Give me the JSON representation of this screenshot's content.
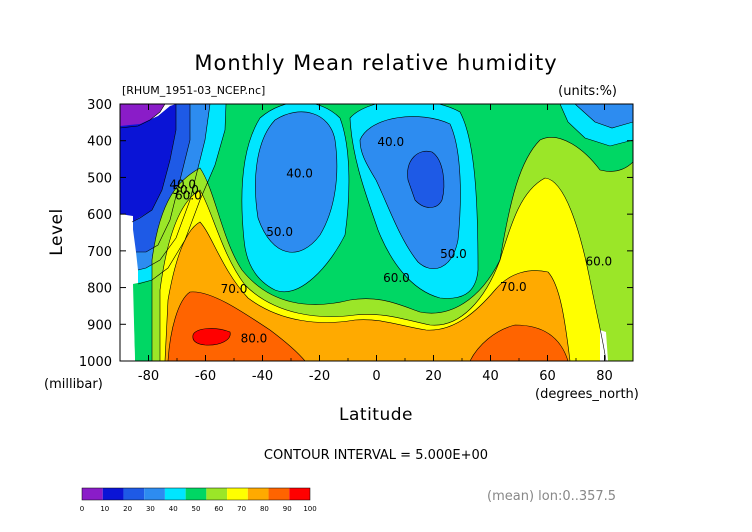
{
  "chart_data": {
    "type": "filled-contour",
    "title": "Monthly Mean relative humidity",
    "file_label": "[RHUM_1951-03_NCEP.nc]",
    "units_label": "(units:%)",
    "xlabel": "Latitude",
    "x_unit_label": "(degrees_north)",
    "ylabel": "Level",
    "y_unit_label": "(millibar)",
    "xlim": [
      -90,
      90
    ],
    "ylim": [
      1000,
      300
    ],
    "x_ticks": [
      -80,
      -60,
      -40,
      -20,
      0,
      20,
      40,
      60,
      80
    ],
    "x_tick_labels": [
      "-80",
      "-60",
      "-40",
      "-20",
      "0",
      "20",
      "40",
      "60",
      "80"
    ],
    "y_ticks": [
      300,
      400,
      500,
      600,
      700,
      800,
      900,
      1000
    ],
    "y_tick_labels": [
      "300",
      "400",
      "500",
      "600",
      "700",
      "800",
      "900",
      "1000"
    ],
    "contour_interval_text": "CONTOUR INTERVAL = 5.000E+00",
    "averaging_text": "(mean) lon:0..357.5",
    "contour_labels": [
      {
        "text": "40.0",
        "lat": -68,
        "lev": 530
      },
      {
        "text": "50.0",
        "lat": -67,
        "lev": 545
      },
      {
        "text": "60.0",
        "lat": -66,
        "lev": 560
      },
      {
        "text": "40.0",
        "lat": -27,
        "lev": 500
      },
      {
        "text": "50.0",
        "lat": -34,
        "lev": 660
      },
      {
        "text": "40.0",
        "lat": 5,
        "lev": 415
      },
      {
        "text": "60.0",
        "lat": 7,
        "lev": 785
      },
      {
        "text": "50.0",
        "lat": 27,
        "lev": 720
      },
      {
        "text": "70.0",
        "lat": -50,
        "lev": 815
      },
      {
        "text": "80.0",
        "lat": -43,
        "lev": 950
      },
      {
        "text": "70.0",
        "lat": 48,
        "lev": 810
      },
      {
        "text": "60.0",
        "lat": 78,
        "lev": 740
      }
    ],
    "colorbar": {
      "levels": [
        0,
        10,
        20,
        30,
        40,
        50,
        60,
        70,
        80,
        90,
        100
      ],
      "labels": [
        "0",
        "10",
        "20",
        "30",
        "40",
        "50",
        "60",
        "70",
        "80",
        "90",
        "100"
      ],
      "colors": [
        "#8a1cc8",
        "#0a14d6",
        "#1e5ae6",
        "#2d8cf0",
        "#00e6ff",
        "#00d764",
        "#9be628",
        "#ffff00",
        "#ffaa00",
        "#ff6400",
        "#ff0000"
      ]
    },
    "grid": false,
    "legend": "colorbar-bottom-left"
  }
}
